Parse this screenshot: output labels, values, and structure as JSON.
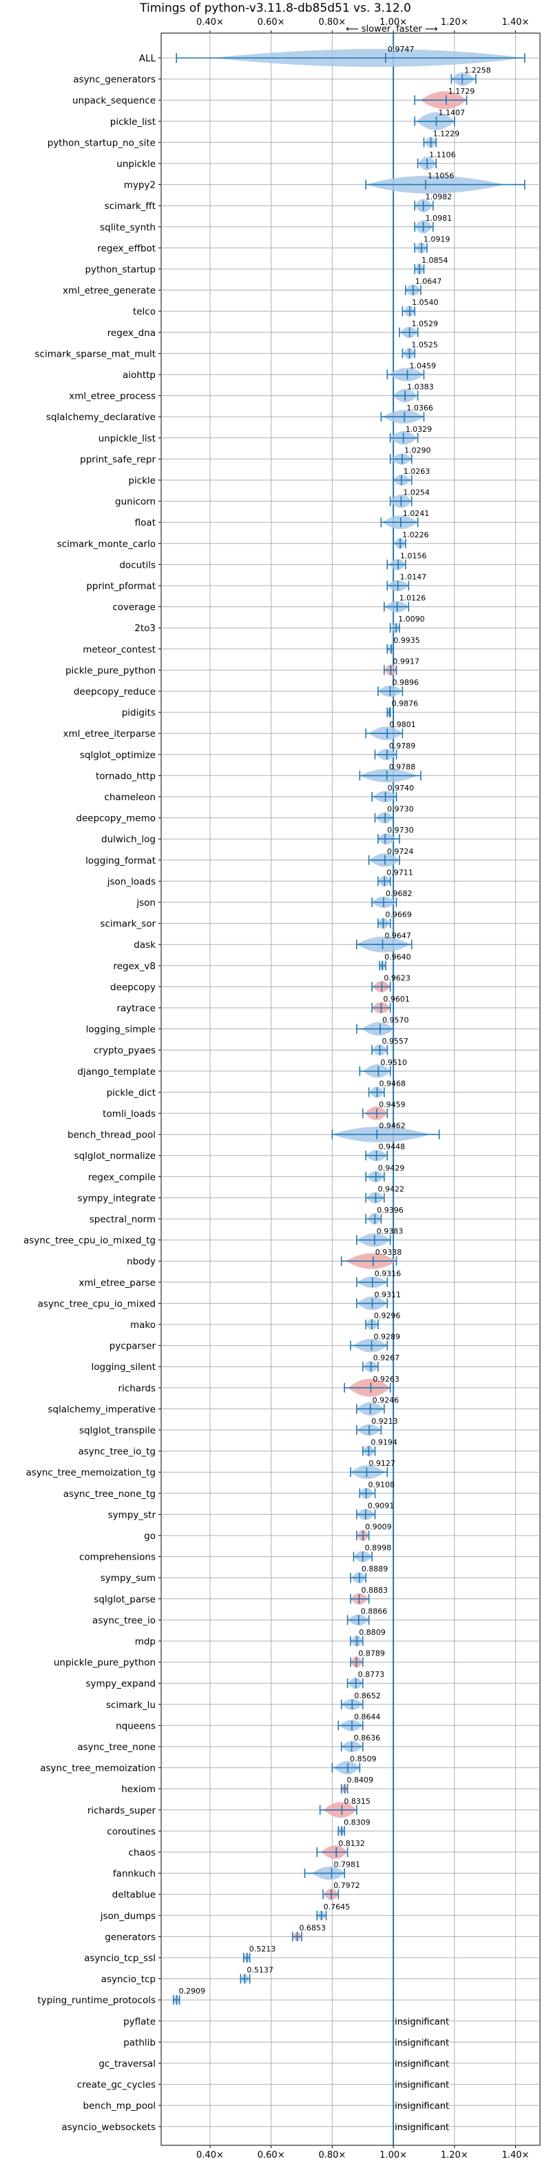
{
  "chart_data": {
    "type": "violin",
    "title": "Timings of python-v3.11.8-db85d51 vs. 3.12.0",
    "direction_labels": {
      "slower": "⟵ slower",
      "faster": "faster ⟶"
    },
    "xlim": [
      0.24,
      1.48
    ],
    "x_ticks": [
      0.4,
      0.6,
      0.8,
      1.0,
      1.2,
      1.4
    ],
    "x_tick_labels": [
      "0.40×",
      "0.60×",
      "0.80×",
      "1.00×",
      "1.20×",
      "1.40×"
    ],
    "grid": true,
    "reference_line": 1.0,
    "insignificant_label": "insignificant",
    "colors": {
      "faster": "#a8c8e8",
      "slower": "#f0a8a8",
      "whisker": "#1f77b4",
      "reference": "#1f77b4"
    },
    "benchmarks": [
      {
        "name": "ALL",
        "value": 0.9747,
        "min": 0.29,
        "max": 1.43,
        "slower": false,
        "spread": 0.06
      },
      {
        "name": "async_generators",
        "value": 1.2258,
        "min": 1.19,
        "max": 1.27,
        "slower": false,
        "spread": 0.03
      },
      {
        "name": "unpack_sequence",
        "value": 1.1729,
        "min": 1.07,
        "max": 1.24,
        "slower": true,
        "spread": 0.06
      },
      {
        "name": "pickle_list",
        "value": 1.1407,
        "min": 1.07,
        "max": 1.2,
        "slower": false,
        "spread": 0.05
      },
      {
        "name": "python_startup_no_site",
        "value": 1.1229,
        "min": 1.1,
        "max": 1.14,
        "slower": false,
        "spread": 0.02
      },
      {
        "name": "unpickle",
        "value": 1.1106,
        "min": 1.08,
        "max": 1.14,
        "slower": false,
        "spread": 0.03
      },
      {
        "name": "mypy2",
        "value": 1.1056,
        "min": 0.91,
        "max": 1.43,
        "slower": false,
        "spread": 0.08
      },
      {
        "name": "scimark_fft",
        "value": 1.0982,
        "min": 1.07,
        "max": 1.13,
        "slower": false,
        "spread": 0.03
      },
      {
        "name": "sqlite_synth",
        "value": 1.0981,
        "min": 1.07,
        "max": 1.13,
        "slower": false,
        "spread": 0.03
      },
      {
        "name": "regex_effbot",
        "value": 1.0919,
        "min": 1.07,
        "max": 1.11,
        "slower": false,
        "spread": 0.02
      },
      {
        "name": "python_startup",
        "value": 1.0854,
        "min": 1.07,
        "max": 1.1,
        "slower": false,
        "spread": 0.02
      },
      {
        "name": "xml_etree_generate",
        "value": 1.0647,
        "min": 1.04,
        "max": 1.09,
        "slower": false,
        "spread": 0.02
      },
      {
        "name": "telco",
        "value": 1.054,
        "min": 1.03,
        "max": 1.07,
        "slower": false,
        "spread": 0.02
      },
      {
        "name": "regex_dna",
        "value": 1.0529,
        "min": 1.02,
        "max": 1.08,
        "slower": false,
        "spread": 0.02
      },
      {
        "name": "scimark_sparse_mat_mult",
        "value": 1.0525,
        "min": 1.03,
        "max": 1.07,
        "slower": false,
        "spread": 0.02
      },
      {
        "name": "aiohttp",
        "value": 1.0459,
        "min": 0.98,
        "max": 1.1,
        "slower": false,
        "spread": 0.03
      },
      {
        "name": "xml_etree_process",
        "value": 1.0383,
        "min": 1.0,
        "max": 1.08,
        "slower": false,
        "spread": 0.03
      },
      {
        "name": "sqlalchemy_declarative",
        "value": 1.0366,
        "min": 0.96,
        "max": 1.1,
        "slower": false,
        "spread": 0.03
      },
      {
        "name": "unpickle_list",
        "value": 1.0329,
        "min": 0.99,
        "max": 1.08,
        "slower": false,
        "spread": 0.03
      },
      {
        "name": "pprint_safe_repr",
        "value": 1.029,
        "min": 0.99,
        "max": 1.06,
        "slower": false,
        "spread": 0.02
      },
      {
        "name": "pickle",
        "value": 1.0263,
        "min": 1.0,
        "max": 1.06,
        "slower": false,
        "spread": 0.02
      },
      {
        "name": "gunicorn",
        "value": 1.0254,
        "min": 0.99,
        "max": 1.06,
        "slower": false,
        "spread": 0.03
      },
      {
        "name": "float",
        "value": 1.0241,
        "min": 0.96,
        "max": 1.08,
        "slower": false,
        "spread": 0.03
      },
      {
        "name": "scimark_monte_carlo",
        "value": 1.0226,
        "min": 1.0,
        "max": 1.04,
        "slower": false,
        "spread": 0.02
      },
      {
        "name": "docutils",
        "value": 1.0156,
        "min": 0.98,
        "max": 1.04,
        "slower": false,
        "spread": 0.02
      },
      {
        "name": "pprint_pformat",
        "value": 1.0147,
        "min": 0.98,
        "max": 1.05,
        "slower": false,
        "spread": 0.02
      },
      {
        "name": "coverage",
        "value": 1.0126,
        "min": 0.97,
        "max": 1.05,
        "slower": false,
        "spread": 0.02
      },
      {
        "name": "2to3",
        "value": 1.009,
        "min": 0.99,
        "max": 1.02,
        "slower": false,
        "spread": 0.01
      },
      {
        "name": "meteor_contest",
        "value": 0.9935,
        "min": 0.98,
        "max": 1.0,
        "slower": false,
        "spread": 0.01
      },
      {
        "name": "pickle_pure_python",
        "value": 0.9917,
        "min": 0.97,
        "max": 1.01,
        "slower": true,
        "spread": 0.02
      },
      {
        "name": "deepcopy_reduce",
        "value": 0.9896,
        "min": 0.95,
        "max": 1.03,
        "slower": false,
        "spread": 0.02
      },
      {
        "name": "pidigits",
        "value": 0.9876,
        "min": 0.98,
        "max": 0.99,
        "slower": false,
        "spread": 0.01
      },
      {
        "name": "xml_etree_iterparse",
        "value": 0.9801,
        "min": 0.91,
        "max": 1.03,
        "slower": false,
        "spread": 0.03
      },
      {
        "name": "sqlglot_optimize",
        "value": 0.9789,
        "min": 0.94,
        "max": 1.01,
        "slower": false,
        "spread": 0.02
      },
      {
        "name": "tornado_http",
        "value": 0.9788,
        "min": 0.89,
        "max": 1.09,
        "slower": false,
        "spread": 0.03
      },
      {
        "name": "chameleon",
        "value": 0.974,
        "min": 0.93,
        "max": 1.01,
        "slower": false,
        "spread": 0.02
      },
      {
        "name": "deepcopy_memo",
        "value": 0.973,
        "min": 0.94,
        "max": 1.0,
        "slower": false,
        "spread": 0.02
      },
      {
        "name": "dulwich_log",
        "value": 0.973,
        "min": 0.95,
        "max": 1.02,
        "slower": false,
        "spread": 0.02
      },
      {
        "name": "logging_format",
        "value": 0.9724,
        "min": 0.92,
        "max": 1.02,
        "slower": false,
        "spread": 0.03
      },
      {
        "name": "json_loads",
        "value": 0.9711,
        "min": 0.95,
        "max": 0.99,
        "slower": false,
        "spread": 0.02
      },
      {
        "name": "json",
        "value": 0.9682,
        "min": 0.93,
        "max": 1.01,
        "slower": false,
        "spread": 0.02
      },
      {
        "name": "scimark_sor",
        "value": 0.9669,
        "min": 0.95,
        "max": 0.99,
        "slower": false,
        "spread": 0.02
      },
      {
        "name": "dask",
        "value": 0.9647,
        "min": 0.88,
        "max": 1.06,
        "slower": false,
        "spread": 0.04
      },
      {
        "name": "regex_v8",
        "value": 0.964,
        "min": 0.955,
        "max": 0.975,
        "slower": false,
        "spread": 0.01
      },
      {
        "name": "deepcopy",
        "value": 0.9623,
        "min": 0.93,
        "max": 0.99,
        "slower": true,
        "spread": 0.02
      },
      {
        "name": "raytrace",
        "value": 0.9601,
        "min": 0.93,
        "max": 0.99,
        "slower": true,
        "spread": 0.02
      },
      {
        "name": "logging_simple",
        "value": 0.957,
        "min": 0.88,
        "max": 1.0,
        "slower": false,
        "spread": 0.03
      },
      {
        "name": "crypto_pyaes",
        "value": 0.9557,
        "min": 0.93,
        "max": 0.98,
        "slower": false,
        "spread": 0.02
      },
      {
        "name": "django_template",
        "value": 0.951,
        "min": 0.89,
        "max": 0.99,
        "slower": false,
        "spread": 0.03
      },
      {
        "name": "pickle_dict",
        "value": 0.9468,
        "min": 0.92,
        "max": 0.97,
        "slower": false,
        "spread": 0.02
      },
      {
        "name": "tomli_loads",
        "value": 0.9459,
        "min": 0.9,
        "max": 0.98,
        "slower": true,
        "spread": 0.03
      },
      {
        "name": "bench_thread_pool",
        "value": 0.9462,
        "min": 0.8,
        "max": 1.15,
        "slower": false,
        "spread": 0.04
      },
      {
        "name": "sqlglot_normalize",
        "value": 0.9448,
        "min": 0.91,
        "max": 0.98,
        "slower": false,
        "spread": 0.02
      },
      {
        "name": "regex_compile",
        "value": 0.9429,
        "min": 0.91,
        "max": 0.97,
        "slower": false,
        "spread": 0.02
      },
      {
        "name": "sympy_integrate",
        "value": 0.9422,
        "min": 0.91,
        "max": 0.97,
        "slower": false,
        "spread": 0.02
      },
      {
        "name": "spectral_norm",
        "value": 0.9396,
        "min": 0.91,
        "max": 0.96,
        "slower": false,
        "spread": 0.02
      },
      {
        "name": "async_tree_cpu_io_mixed_tg",
        "value": 0.9383,
        "min": 0.88,
        "max": 0.99,
        "slower": false,
        "spread": 0.03
      },
      {
        "name": "nbody",
        "value": 0.9338,
        "min": 0.83,
        "max": 1.01,
        "slower": true,
        "spread": 0.04
      },
      {
        "name": "xml_etree_parse",
        "value": 0.9316,
        "min": 0.88,
        "max": 0.98,
        "slower": false,
        "spread": 0.02
      },
      {
        "name": "async_tree_cpu_io_mixed",
        "value": 0.9311,
        "min": 0.88,
        "max": 0.98,
        "slower": false,
        "spread": 0.03
      },
      {
        "name": "mako",
        "value": 0.9296,
        "min": 0.91,
        "max": 0.95,
        "slower": false,
        "spread": 0.02
      },
      {
        "name": "pycparser",
        "value": 0.9289,
        "min": 0.86,
        "max": 0.98,
        "slower": false,
        "spread": 0.03
      },
      {
        "name": "logging_silent",
        "value": 0.9267,
        "min": 0.9,
        "max": 0.95,
        "slower": false,
        "spread": 0.02
      },
      {
        "name": "richards",
        "value": 0.9263,
        "min": 0.84,
        "max": 0.99,
        "slower": true,
        "spread": 0.05
      },
      {
        "name": "sqlalchemy_imperative",
        "value": 0.9246,
        "min": 0.88,
        "max": 0.97,
        "slower": false,
        "spread": 0.03
      },
      {
        "name": "sqlglot_transpile",
        "value": 0.9213,
        "min": 0.88,
        "max": 0.96,
        "slower": false,
        "spread": 0.02
      },
      {
        "name": "async_tree_io_tg",
        "value": 0.9194,
        "min": 0.9,
        "max": 0.94,
        "slower": false,
        "spread": 0.02
      },
      {
        "name": "async_tree_memoization_tg",
        "value": 0.9127,
        "min": 0.86,
        "max": 0.98,
        "slower": false,
        "spread": 0.03
      },
      {
        "name": "async_tree_none_tg",
        "value": 0.9108,
        "min": 0.89,
        "max": 0.94,
        "slower": false,
        "spread": 0.02
      },
      {
        "name": "sympy_str",
        "value": 0.9091,
        "min": 0.88,
        "max": 0.94,
        "slower": false,
        "spread": 0.02
      },
      {
        "name": "go",
        "value": 0.9009,
        "min": 0.88,
        "max": 0.92,
        "slower": true,
        "spread": 0.02
      },
      {
        "name": "comprehensions",
        "value": 0.8998,
        "min": 0.87,
        "max": 0.93,
        "slower": false,
        "spread": 0.02
      },
      {
        "name": "sympy_sum",
        "value": 0.8889,
        "min": 0.86,
        "max": 0.91,
        "slower": false,
        "spread": 0.02
      },
      {
        "name": "sqlglot_parse",
        "value": 0.8883,
        "min": 0.86,
        "max": 0.92,
        "slower": true,
        "spread": 0.02
      },
      {
        "name": "async_tree_io",
        "value": 0.8866,
        "min": 0.85,
        "max": 0.92,
        "slower": false,
        "spread": 0.02
      },
      {
        "name": "mdp",
        "value": 0.8809,
        "min": 0.86,
        "max": 0.9,
        "slower": false,
        "spread": 0.02
      },
      {
        "name": "unpickle_pure_python",
        "value": 0.8789,
        "min": 0.86,
        "max": 0.9,
        "slower": true,
        "spread": 0.02
      },
      {
        "name": "sympy_expand",
        "value": 0.8773,
        "min": 0.85,
        "max": 0.9,
        "slower": false,
        "spread": 0.02
      },
      {
        "name": "scimark_lu",
        "value": 0.8652,
        "min": 0.83,
        "max": 0.9,
        "slower": false,
        "spread": 0.02
      },
      {
        "name": "nqueens",
        "value": 0.8644,
        "min": 0.82,
        "max": 0.9,
        "slower": false,
        "spread": 0.02
      },
      {
        "name": "async_tree_none",
        "value": 0.8636,
        "min": 0.83,
        "max": 0.9,
        "slower": false,
        "spread": 0.02
      },
      {
        "name": "async_tree_memoization",
        "value": 0.8509,
        "min": 0.8,
        "max": 0.89,
        "slower": false,
        "spread": 0.03
      },
      {
        "name": "hexiom",
        "value": 0.8409,
        "min": 0.83,
        "max": 0.85,
        "slower": true,
        "spread": 0.01
      },
      {
        "name": "richards_super",
        "value": 0.8315,
        "min": 0.76,
        "max": 0.88,
        "slower": true,
        "spread": 0.04
      },
      {
        "name": "coroutines",
        "value": 0.8309,
        "min": 0.82,
        "max": 0.84,
        "slower": false,
        "spread": 0.01
      },
      {
        "name": "chaos",
        "value": 0.8132,
        "min": 0.75,
        "max": 0.85,
        "slower": true,
        "spread": 0.03
      },
      {
        "name": "fannkuch",
        "value": 0.7981,
        "min": 0.71,
        "max": 0.84,
        "slower": false,
        "spread": 0.03
      },
      {
        "name": "deltablue",
        "value": 0.7972,
        "min": 0.77,
        "max": 0.82,
        "slower": true,
        "spread": 0.02
      },
      {
        "name": "json_dumps",
        "value": 0.7645,
        "min": 0.75,
        "max": 0.78,
        "slower": false,
        "spread": 0.01
      },
      {
        "name": "generators",
        "value": 0.6853,
        "min": 0.67,
        "max": 0.7,
        "slower": true,
        "spread": 0.01
      },
      {
        "name": "asyncio_tcp_ssl",
        "value": 0.5213,
        "min": 0.51,
        "max": 0.53,
        "slower": false,
        "spread": 0.01
      },
      {
        "name": "asyncio_tcp",
        "value": 0.5137,
        "min": 0.5,
        "max": 0.53,
        "slower": false,
        "spread": 0.01
      },
      {
        "name": "typing_runtime_protocols",
        "value": 0.2909,
        "min": 0.28,
        "max": 0.3,
        "slower": false,
        "spread": 0.01
      },
      {
        "name": "pyflate",
        "insignificant": true
      },
      {
        "name": "pathlib",
        "insignificant": true
      },
      {
        "name": "gc_traversal",
        "insignificant": true
      },
      {
        "name": "create_gc_cycles",
        "insignificant": true
      },
      {
        "name": "bench_mp_pool",
        "insignificant": true
      },
      {
        "name": "asyncio_websockets",
        "insignificant": true
      }
    ]
  }
}
